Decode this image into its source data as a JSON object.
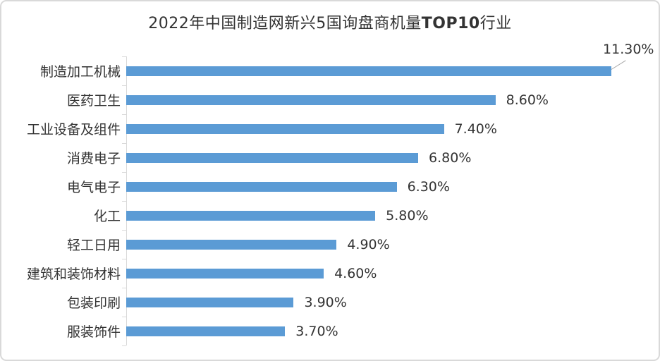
{
  "title": {
    "prefix": "2022年中国制造网新兴5国询盘商机量",
    "bold": "TOP10",
    "suffix": "行业"
  },
  "chart_data": {
    "type": "bar",
    "orientation": "horizontal",
    "title": "2022年中国制造网新兴5国询盘商机量TOP10行业",
    "categories": [
      "制造加工机械",
      "医药卫生",
      "工业设备及组件",
      "消费电子",
      "电气电子",
      "化工",
      "轻工日用",
      "建筑和装饰材料",
      "包装印刷",
      "服装饰件"
    ],
    "values": [
      11.3,
      8.6,
      7.4,
      6.8,
      6.3,
      5.8,
      4.9,
      4.6,
      3.9,
      3.7
    ],
    "value_labels": [
      "11.30%",
      "8.60%",
      "7.40%",
      "6.80%",
      "6.30%",
      "5.80%",
      "4.90%",
      "4.60%",
      "3.90%",
      "3.70%"
    ],
    "xlabel": "",
    "ylabel": "",
    "xlim": [
      0,
      12.4
    ],
    "grid": false,
    "legend": "none",
    "first_label_outside_with_leader": true,
    "colors": {
      "bar": "#5b9bd5",
      "axis": "#d9d9d9",
      "text": "#333333",
      "leader_line": "#a6a6a6",
      "card_border": "#d9d9d9"
    }
  }
}
